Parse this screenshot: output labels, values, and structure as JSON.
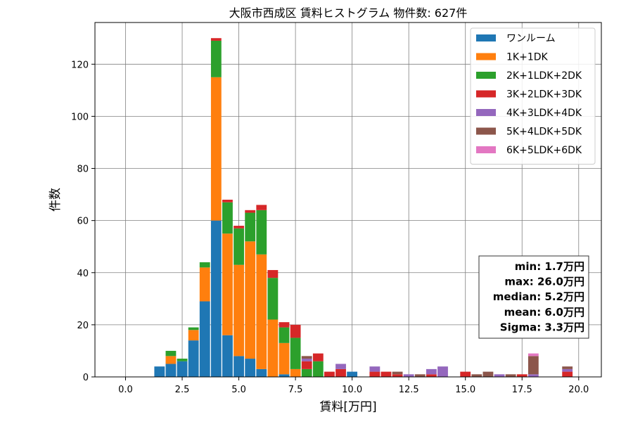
{
  "chart_data": {
    "type": "bar",
    "stacked": true,
    "title": "大阪市西成区 賃料ヒストグラム  物件数: 627件",
    "xlabel": "賃料[万円]",
    "ylabel": "件数",
    "xlim": [
      -1.35,
      21.0
    ],
    "ylim": [
      0,
      136
    ],
    "xticks": [
      0.0,
      2.5,
      5.0,
      7.5,
      10.0,
      12.5,
      15.0,
      17.5,
      20.0
    ],
    "xtick_labels": [
      "0.0",
      "2.5",
      "5.0",
      "7.5",
      "10.0",
      "12.5",
      "15.0",
      "17.5",
      "20.0"
    ],
    "yticks": [
      0,
      20,
      40,
      60,
      80,
      100,
      120
    ],
    "ytick_labels": [
      "0",
      "20",
      "40",
      "60",
      "80",
      "100",
      "120"
    ],
    "grid": true,
    "legend_position": "top-right",
    "bin_width": 0.5,
    "x": [
      1.5,
      2.0,
      2.5,
      3.0,
      3.5,
      4.0,
      4.5,
      5.0,
      5.5,
      6.0,
      6.5,
      7.0,
      7.5,
      8.0,
      8.5,
      9.0,
      9.5,
      10.0,
      10.5,
      11.0,
      11.5,
      12.0,
      12.5,
      13.0,
      13.5,
      14.0,
      14.5,
      15.0,
      15.5,
      16.0,
      16.5,
      17.0,
      17.5,
      18.0,
      18.5,
      19.0,
      19.5
    ],
    "series": [
      {
        "name": "ワンルーム",
        "color": "#1f77b4",
        "values": [
          4,
          5,
          6,
          14,
          29,
          60,
          16,
          8,
          7,
          3,
          0,
          1,
          0,
          0,
          0,
          0,
          0,
          2,
          0,
          0,
          0,
          0,
          0,
          0,
          0,
          0,
          0,
          0,
          0,
          0,
          0,
          0,
          0,
          0,
          0,
          0,
          0
        ]
      },
      {
        "name": "1K+1DK",
        "color": "#ff7f0e",
        "values": [
          0,
          3,
          0,
          4,
          13,
          55,
          39,
          35,
          45,
          44,
          22,
          12,
          3,
          0,
          0,
          0,
          0,
          0,
          0,
          0,
          0,
          0,
          0,
          0,
          0,
          0,
          0,
          0,
          0,
          0,
          0,
          0,
          0,
          0,
          0,
          0,
          0
        ]
      },
      {
        "name": "2K+1LDK+2DK",
        "color": "#2ca02c",
        "values": [
          0,
          2,
          1,
          1,
          2,
          14,
          12,
          14,
          11,
          17,
          16,
          6,
          12,
          3,
          6,
          0,
          0,
          0,
          0,
          0,
          0,
          0,
          0,
          0,
          0,
          0,
          0,
          0,
          0,
          0,
          0,
          0,
          0,
          0,
          0,
          0,
          0
        ]
      },
      {
        "name": "3K+2LDK+3DK",
        "color": "#d62728",
        "values": [
          0,
          0,
          0,
          0,
          0,
          1,
          1,
          1,
          1,
          2,
          3,
          2,
          5,
          3,
          3,
          2,
          3,
          0,
          0,
          2,
          2,
          1,
          0,
          0,
          1,
          0,
          0,
          2,
          0,
          0,
          0,
          0,
          1,
          0,
          0,
          0,
          2
        ]
      },
      {
        "name": "4K+3LDK+4DK",
        "color": "#9467bd",
        "values": [
          0,
          0,
          0,
          0,
          0,
          0,
          0,
          0,
          0,
          0,
          0,
          0,
          0,
          1,
          0,
          0,
          2,
          0,
          0,
          2,
          0,
          0,
          1,
          0,
          2,
          4,
          0,
          0,
          0,
          0,
          1,
          0,
          0,
          1,
          0,
          0,
          1
        ]
      },
      {
        "name": "5K+4LDK+5DK",
        "color": "#8c564b",
        "values": [
          0,
          0,
          0,
          0,
          0,
          0,
          0,
          0,
          0,
          0,
          0,
          0,
          0,
          1,
          0,
          0,
          0,
          0,
          0,
          0,
          0,
          1,
          0,
          1,
          0,
          0,
          0,
          0,
          1,
          2,
          0,
          1,
          0,
          7,
          0,
          0,
          1
        ]
      },
      {
        "name": "6K+5LDK+6DK",
        "color": "#e377c2",
        "values": [
          0,
          0,
          0,
          0,
          0,
          0,
          0,
          0,
          0,
          0,
          0,
          0,
          0,
          0,
          0,
          0,
          0,
          0,
          0,
          0,
          0,
          0,
          0,
          0,
          0,
          0,
          0,
          0,
          0,
          0,
          0,
          0,
          0,
          1,
          0,
          0,
          0
        ]
      }
    ],
    "annotations": [
      "min: 1.7万円",
      "max: 26.0万円",
      "median: 5.2万円",
      "mean: 6.0万円",
      "Sigma: 3.3万円"
    ]
  }
}
